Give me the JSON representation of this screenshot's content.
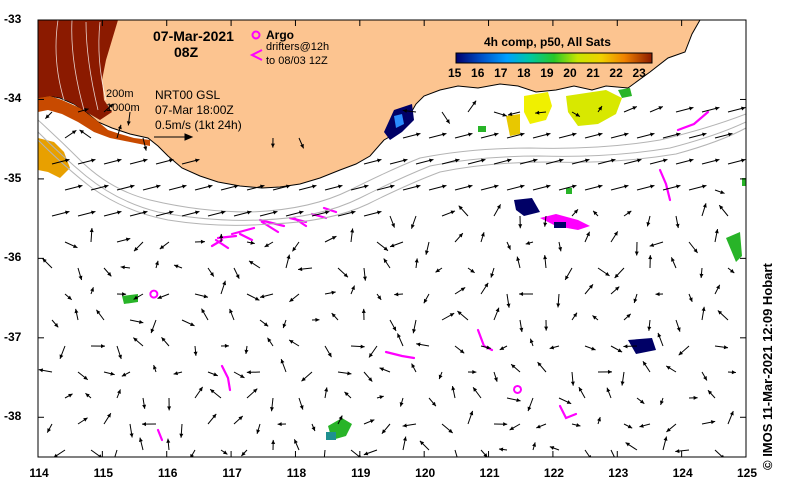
{
  "title": {
    "date": "07-Mar-2021",
    "time": "08Z"
  },
  "argo_legend": {
    "label": "Argo",
    "drifters_line1": "drifters@12h",
    "drifters_line2": "to 08/03 12Z"
  },
  "contours": {
    "line1": "200m",
    "line2": "1000m"
  },
  "currents": {
    "source": "NRT00 GSL",
    "time": "07-Mar 18:00Z",
    "scale": "0.5m/s (1kt 24h)"
  },
  "colorbar": {
    "title": "4h comp, p50, All Sats",
    "ticks": [
      "15",
      "16",
      "17",
      "18",
      "19",
      "20",
      "21",
      "22",
      "23"
    ],
    "range": [
      15,
      23.5
    ]
  },
  "credit": "© IMOS 11-Mar-2021 12:09 Hobart",
  "axes": {
    "x_ticks": [
      "114",
      "115",
      "116",
      "117",
      "118",
      "119",
      "120",
      "121",
      "122",
      "123",
      "124",
      "125"
    ],
    "y_ticks": [
      "-33",
      "-34",
      "-35",
      "-36",
      "-37",
      "-38"
    ],
    "lon_range": [
      114,
      125
    ],
    "lat_range": [
      -38.5,
      -33
    ]
  },
  "argo_floats": [
    {
      "lon": 115.8,
      "lat": -36.45
    },
    {
      "lon": 121.45,
      "lat": -37.65
    }
  ],
  "colors": {
    "land": "#fcc490",
    "argo": "#ff00ff",
    "arrow": "#000000",
    "contour": "#b4b4b4",
    "deep_sst": "#8b1a00",
    "warm_sst": "#e8a000",
    "cool_sst": "#00006e",
    "mid_sst": "#28b428",
    "hi_sst": "#f0f000"
  }
}
